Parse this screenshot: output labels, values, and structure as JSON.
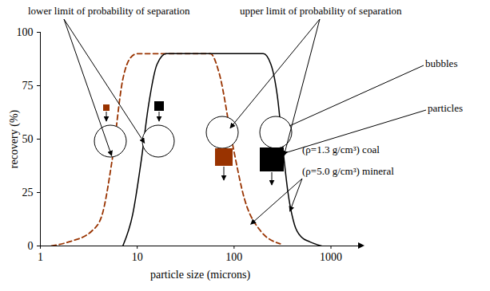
{
  "chart_data": {
    "type": "line",
    "xlabel": "particle size (microns)",
    "ylabel": "recovery (%)",
    "log": "x",
    "xlim": [
      1,
      2000
    ],
    "xticks": [
      1,
      10,
      100,
      1000
    ],
    "ylim": [
      0,
      100
    ],
    "yticks": [
      0,
      25,
      50,
      75,
      100
    ],
    "grid": false,
    "series": [
      {
        "color": "#993300",
        "line_style": "dashed",
        "x": [
          1.3,
          2,
          3.4,
          4.3,
          5.5,
          7.1,
          8.5,
          10,
          30,
          57,
          70,
          96,
          128,
          188,
          300
        ],
        "values": [
          0,
          2,
          7,
          14,
          40,
          78,
          88,
          90,
          90,
          90,
          81,
          48,
          22,
          7,
          1
        ]
      },
      {
        "color": "#000000",
        "line_style": "solid",
        "x": [
          7.1,
          9,
          11,
          13,
          16,
          20,
          200,
          240,
          280,
          320,
          360,
          420,
          500,
          600,
          800
        ],
        "values": [
          0,
          15,
          40,
          65,
          85,
          90,
          90,
          85,
          70,
          45,
          25,
          10,
          4,
          2,
          0
        ]
      }
    ],
    "annotations": [
      "lower limit of probability of separation",
      "upper limit of probability of separation",
      "bubbles",
      "particles",
      "(ρ=1.3 g/cm³) coal",
      "(ρ=5.0 g/cm³) mineral"
    ]
  }
}
